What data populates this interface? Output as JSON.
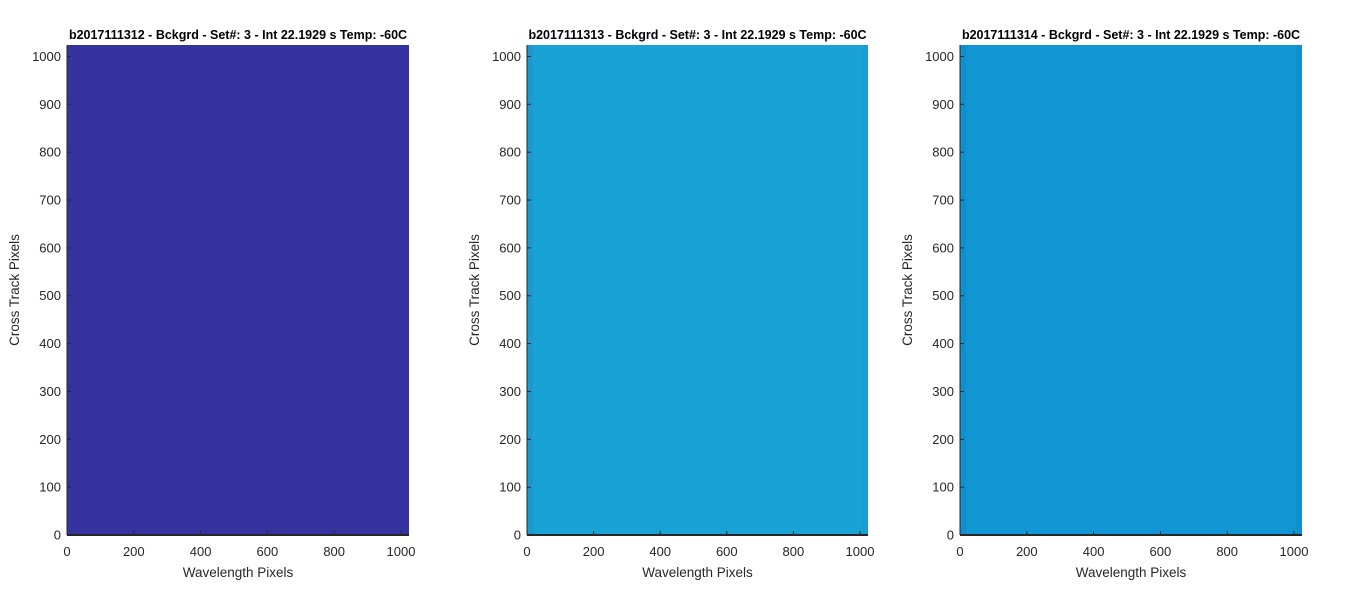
{
  "figure": {
    "background": "#ffffff"
  },
  "chart_data": [
    {
      "type": "heatmap",
      "title": "b2017111312 - Bckgrd - Set#: 3 - Int 22.1929 s Temp: -60C",
      "xlabel": "Wavelength Pixels",
      "ylabel": "Cross Track Pixels",
      "xlim": [
        0,
        1024
      ],
      "ylim": [
        0,
        1024
      ],
      "xticks": [
        0,
        200,
        400,
        600,
        800,
        1000
      ],
      "yticks": [
        0,
        100,
        200,
        300,
        400,
        500,
        600,
        700,
        800,
        900,
        1000
      ],
      "colors": {
        "fill": "#35339f",
        "edge": "#35339f"
      }
    },
    {
      "type": "heatmap",
      "title": "b2017111313 - Bckgrd - Set#: 3 - Int 22.1929 s Temp: -60C",
      "xlabel": "Wavelength Pixels",
      "ylabel": "Cross Track Pixels",
      "xlim": [
        0,
        1024
      ],
      "ylim": [
        0,
        1024
      ],
      "xticks": [
        0,
        200,
        400,
        600,
        800,
        1000
      ],
      "yticks": [
        0,
        100,
        200,
        300,
        400,
        500,
        600,
        700,
        800,
        900,
        1000
      ],
      "colors": {
        "fill": "#18a2d6",
        "edge": "#1d95cc"
      }
    },
    {
      "type": "heatmap",
      "title": "b2017111314 - Bckgrd - Set#: 3 - Int 22.1929 s Temp: -60C",
      "xlabel": "Wavelength Pixels",
      "ylabel": "Cross Track Pixels",
      "xlim": [
        0,
        1024
      ],
      "ylim": [
        0,
        1024
      ],
      "xticks": [
        0,
        200,
        400,
        600,
        800,
        1000
      ],
      "yticks": [
        0,
        100,
        200,
        300,
        400,
        500,
        600,
        700,
        800,
        900,
        1000
      ],
      "colors": {
        "fill": "#1196d4",
        "edge": "#1088c8"
      }
    }
  ]
}
